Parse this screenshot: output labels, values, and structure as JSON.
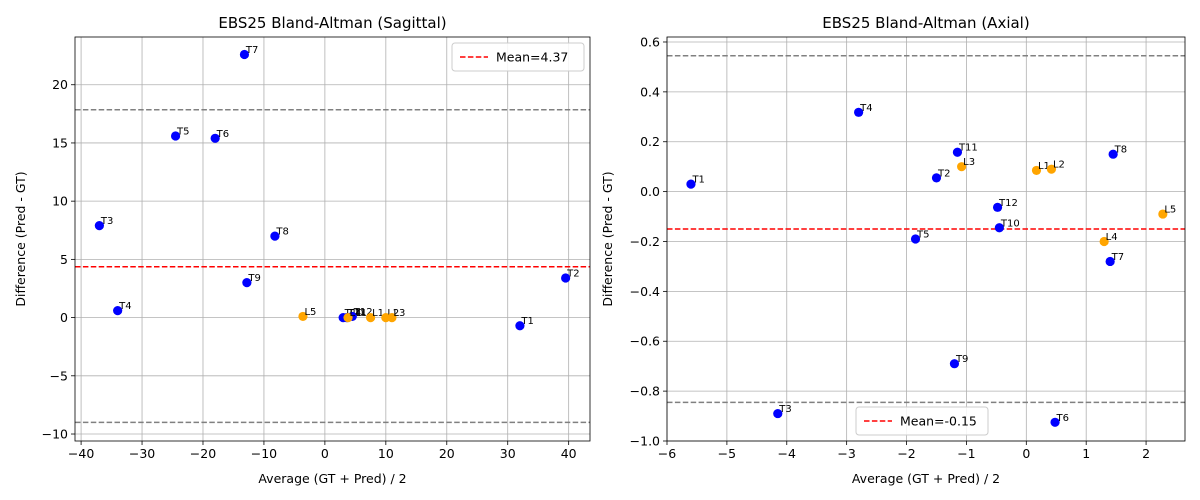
{
  "chart_data": [
    {
      "type": "scatter",
      "title": "EBS25 Bland-Altman (Sagittal)",
      "xlabel": "Average (GT + Pred) / 2",
      "ylabel": "Difference (Pred - GT)",
      "xlim": [
        -41,
        43.5
      ],
      "ylim": [
        -10.6,
        24.1
      ],
      "xticks": [
        -40,
        -30,
        -20,
        -10,
        0,
        10,
        20,
        30,
        40
      ],
      "yticks": [
        -10,
        -5,
        0,
        5,
        10,
        15,
        20
      ],
      "grid": true,
      "legend_position": "top-right",
      "mean": 4.37,
      "mean_legend": "Mean=4.37",
      "loa_upper": 17.85,
      "loa_lower": -9.0,
      "colors": {
        "thoracic": "#0000ff",
        "lumbar": "#ffa500",
        "mean": "#ff0000",
        "loa": "#808080"
      },
      "points": [
        {
          "label": "T1",
          "x": 32.0,
          "y": -0.7,
          "group": "thoracic"
        },
        {
          "label": "T2",
          "x": 39.5,
          "y": 3.4,
          "group": "thoracic"
        },
        {
          "label": "T3",
          "x": -37.0,
          "y": 7.9,
          "group": "thoracic"
        },
        {
          "label": "T4",
          "x": -34.0,
          "y": 0.6,
          "group": "thoracic"
        },
        {
          "label": "T5",
          "x": -24.5,
          "y": 15.6,
          "group": "thoracic"
        },
        {
          "label": "T6",
          "x": -18.0,
          "y": 15.4,
          "group": "thoracic"
        },
        {
          "label": "T7",
          "x": -13.2,
          "y": 22.6,
          "group": "thoracic"
        },
        {
          "label": "T8",
          "x": -8.2,
          "y": 7.0,
          "group": "thoracic"
        },
        {
          "label": "T9",
          "x": -12.8,
          "y": 3.0,
          "group": "thoracic"
        },
        {
          "label": "T10",
          "x": 3.0,
          "y": 0.0,
          "group": "thoracic"
        },
        {
          "label": "T11",
          "x": 3.6,
          "y": 0.0,
          "group": "thoracic"
        },
        {
          "label": "T12",
          "x": 4.5,
          "y": 0.1,
          "group": "thoracic"
        },
        {
          "label": "L1",
          "x": 7.5,
          "y": 0.0,
          "group": "lumbar"
        },
        {
          "label": "L2",
          "x": 10.0,
          "y": 0.0,
          "group": "lumbar"
        },
        {
          "label": "L3",
          "x": 11.0,
          "y": 0.0,
          "group": "lumbar"
        },
        {
          "label": "L4",
          "x": 3.8,
          "y": 0.0,
          "group": "lumbar"
        },
        {
          "label": "L5",
          "x": -3.6,
          "y": 0.1,
          "group": "lumbar"
        }
      ]
    },
    {
      "type": "scatter",
      "title": "EBS25 Bland-Altman (Axial)",
      "xlabel": "Average (GT + Pred) / 2",
      "ylabel": "Difference (Pred - GT)",
      "xlim": [
        -6.0,
        2.65
      ],
      "ylim": [
        -1.0,
        0.62
      ],
      "xticks": [
        -6,
        -5,
        -4,
        -3,
        -2,
        -1,
        0,
        1,
        2
      ],
      "yticks": [
        -1.0,
        -0.8,
        -0.6,
        -0.4,
        -0.2,
        0.0,
        0.2,
        0.4,
        0.6
      ],
      "ytick_labels": [
        "−1.0",
        "−0.8",
        "−0.6",
        "−0.4",
        "−0.2",
        "0.0",
        "0.2",
        "0.4",
        "0.6"
      ],
      "grid": true,
      "legend_position": "bottom-center",
      "mean": -0.15,
      "mean_legend": "Mean=-0.15",
      "loa_upper": 0.545,
      "loa_lower": -0.845,
      "colors": {
        "thoracic": "#0000ff",
        "lumbar": "#ffa500",
        "mean": "#ff0000",
        "loa": "#808080"
      },
      "points": [
        {
          "label": "T1",
          "x": -5.6,
          "y": 0.03,
          "group": "thoracic"
        },
        {
          "label": "T2",
          "x": -1.5,
          "y": 0.055,
          "group": "thoracic"
        },
        {
          "label": "T3",
          "x": -4.15,
          "y": -0.89,
          "group": "thoracic"
        },
        {
          "label": "T4",
          "x": -2.8,
          "y": 0.318,
          "group": "thoracic"
        },
        {
          "label": "T5",
          "x": -1.85,
          "y": -0.19,
          "group": "thoracic"
        },
        {
          "label": "T6",
          "x": 0.48,
          "y": -0.925,
          "group": "thoracic"
        },
        {
          "label": "T7",
          "x": 1.4,
          "y": -0.28,
          "group": "thoracic"
        },
        {
          "label": "T8",
          "x": 1.45,
          "y": 0.15,
          "group": "thoracic"
        },
        {
          "label": "T9",
          "x": -1.2,
          "y": -0.69,
          "group": "thoracic"
        },
        {
          "label": "T10",
          "x": -0.45,
          "y": -0.145,
          "group": "thoracic"
        },
        {
          "label": "T11",
          "x": -1.15,
          "y": 0.158,
          "group": "thoracic"
        },
        {
          "label": "T12",
          "x": -0.48,
          "y": -0.063,
          "group": "thoracic"
        },
        {
          "label": "L1",
          "x": 0.17,
          "y": 0.085,
          "group": "lumbar"
        },
        {
          "label": "L2",
          "x": 0.42,
          "y": 0.09,
          "group": "lumbar"
        },
        {
          "label": "L3",
          "x": -1.08,
          "y": 0.1,
          "group": "lumbar"
        },
        {
          "label": "L4",
          "x": 1.3,
          "y": -0.2,
          "group": "lumbar"
        },
        {
          "label": "L5",
          "x": 2.28,
          "y": -0.09,
          "group": "lumbar"
        }
      ]
    }
  ]
}
